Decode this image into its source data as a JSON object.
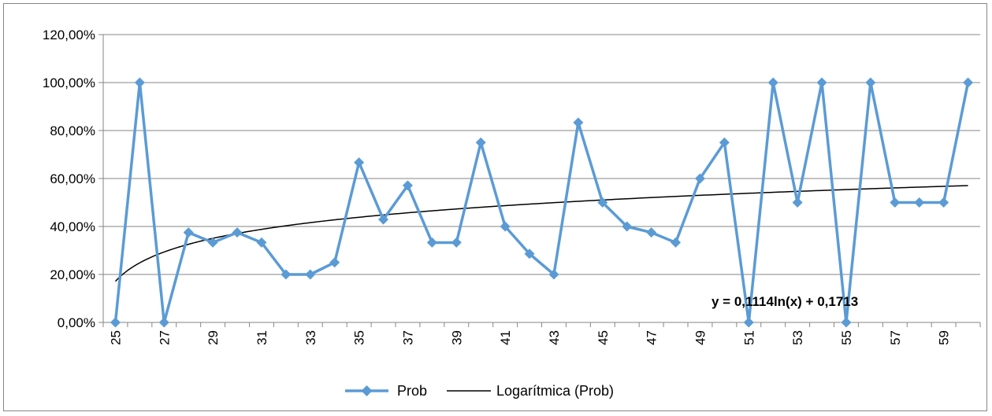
{
  "chart_data": {
    "type": "line",
    "x": [
      25,
      26,
      27,
      28,
      29,
      30,
      31,
      32,
      33,
      34,
      35,
      36,
      37,
      38,
      39,
      40,
      41,
      42,
      43,
      44,
      45,
      46,
      47,
      48,
      49,
      50,
      51,
      52,
      53,
      54,
      55,
      56,
      57,
      58,
      59,
      60
    ],
    "x_tick_labels": [
      "25",
      "27",
      "29",
      "31",
      "33",
      "35",
      "37",
      "39",
      "41",
      "43",
      "45",
      "47",
      "49",
      "51",
      "53",
      "55",
      "57",
      "59"
    ],
    "y_tick_labels": [
      "0,00%",
      "20,00%",
      "40,00%",
      "60,00%",
      "80,00%",
      "100,00%",
      "120,00%"
    ],
    "ylim": [
      0,
      1.2
    ],
    "y_step": 0.2,
    "grid": true,
    "legend_position": "bottom",
    "series": [
      {
        "name": "Prob",
        "color": "#5B9BD5",
        "marker": "diamond",
        "values": [
          0,
          1.0,
          0,
          0.375,
          0.333,
          0.375,
          0.333,
          0.2,
          0.2,
          0.25,
          0.667,
          0.429,
          0.571,
          0.333,
          0.333,
          0.75,
          0.4,
          0.286,
          0.2,
          0.833,
          0.5,
          0.4,
          0.375,
          0.333,
          0.6,
          0.75,
          0,
          1.0,
          0.5,
          1.0,
          0,
          1.0,
          0.5,
          0.5,
          0.5,
          1.0
        ]
      }
    ],
    "trendline": {
      "name": "Logarítmica (Prob)",
      "type": "logarithmic",
      "a": 0.1114,
      "b": 0.1713,
      "color": "#000000",
      "equation_label": "y = 0,1114ln(x) + 0,1713"
    }
  }
}
